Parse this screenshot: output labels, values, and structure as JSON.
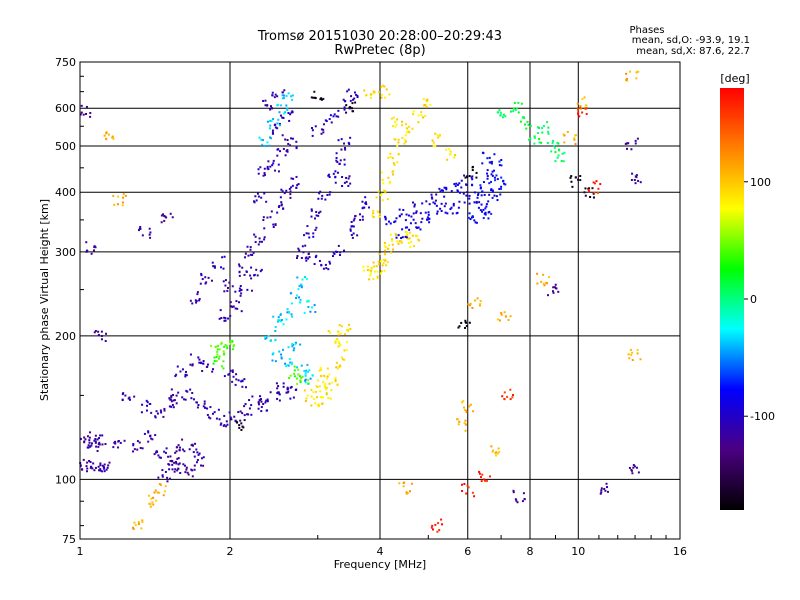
{
  "chart_data": {
    "type": "scatter",
    "title": "Tromsø 20151030 20:28:00–20:29:43",
    "subtitle": "RwPretec (8p)",
    "xlabel": "Frequency [MHz]",
    "ylabel": "Stationary phase Virtual Height [km]",
    "x_scale": "log",
    "y_scale": "log",
    "xlim": [
      1,
      16
    ],
    "ylim": [
      75,
      750
    ],
    "x_ticks": [
      "1",
      "2",
      "4",
      "6",
      "8",
      "10",
      "16"
    ],
    "y_ticks": [
      "75",
      "100",
      "200",
      "300",
      "400",
      "500",
      "600",
      "750"
    ],
    "grid": true,
    "stats": {
      "heading": "Phases",
      "line_o": "mean, sd,O: -93.9, 19.1",
      "line_x": "mean, sd,X:  87.6, 22.7"
    },
    "colorbar": {
      "label": "[deg]",
      "ticks": [
        "100",
        "0",
        "-100"
      ],
      "tick_values": [
        100,
        0,
        -100
      ],
      "range": [
        -180,
        180
      ],
      "colors": [
        "#000000",
        "#4b0082",
        "#0000ff",
        "#00ffff",
        "#00ff00",
        "#ffff00",
        "#ff8000",
        "#ff0000"
      ]
    },
    "clusters": [
      {
        "phase": -115,
        "points": [
          [
            1.02,
            122
          ],
          [
            1.05,
            119
          ],
          [
            1.08,
            121
          ],
          [
            1.1,
            118
          ],
          [
            1.03,
            108
          ],
          [
            1.06,
            106
          ],
          [
            1.09,
            105
          ],
          [
            1.12,
            107
          ],
          [
            1.2,
            120
          ],
          [
            1.3,
            117
          ],
          [
            1.38,
            123
          ],
          [
            1.45,
            114
          ],
          [
            1.52,
            112
          ],
          [
            1.6,
            118
          ],
          [
            1.7,
            116
          ],
          [
            1.55,
            108
          ],
          [
            1.65,
            104
          ],
          [
            1.75,
            110
          ],
          [
            1.48,
            102
          ],
          [
            1.58,
            106
          ]
        ]
      },
      {
        "phase": -110,
        "points": [
          [
            1.25,
            150
          ],
          [
            1.35,
            142
          ],
          [
            1.45,
            138
          ],
          [
            1.55,
            145
          ],
          [
            1.65,
            150
          ],
          [
            1.75,
            142
          ],
          [
            1.85,
            138
          ],
          [
            1.95,
            132
          ],
          [
            2.05,
            135
          ],
          [
            2.15,
            140
          ],
          [
            2.25,
            146
          ],
          [
            2.35,
            142
          ],
          [
            2.45,
            150
          ],
          [
            2.55,
            156
          ],
          [
            2.65,
            152
          ],
          [
            1.6,
            168
          ],
          [
            1.7,
            178
          ],
          [
            1.8,
            172
          ],
          [
            2.0,
            165
          ],
          [
            2.1,
            160
          ]
        ]
      },
      {
        "phase": -110,
        "points": [
          [
            1.7,
            240
          ],
          [
            1.8,
            262
          ],
          [
            1.9,
            285
          ],
          [
            2.0,
            255
          ],
          [
            2.1,
            275
          ],
          [
            2.2,
            300
          ],
          [
            2.25,
            270
          ],
          [
            1.95,
            220
          ],
          [
            2.05,
            230
          ],
          [
            2.15,
            248
          ],
          [
            2.3,
            320
          ],
          [
            2.4,
            345
          ],
          [
            2.5,
            372
          ],
          [
            2.6,
            395
          ],
          [
            2.7,
            420
          ],
          [
            2.45,
            455
          ],
          [
            2.55,
            480
          ],
          [
            2.65,
            510
          ],
          [
            2.5,
            540
          ],
          [
            2.6,
            575
          ],
          [
            2.4,
            610
          ],
          [
            2.5,
            640
          ],
          [
            2.3,
            390
          ],
          [
            2.35,
            440
          ]
        ]
      },
      {
        "phase": -105,
        "points": [
          [
            2.8,
            300
          ],
          [
            2.9,
            330
          ],
          [
            3.0,
            360
          ],
          [
            3.1,
            395
          ],
          [
            3.2,
            430
          ],
          [
            3.3,
            470
          ],
          [
            3.4,
            505
          ],
          [
            3.0,
            540
          ],
          [
            3.2,
            575
          ],
          [
            3.4,
            610
          ],
          [
            3.5,
            640
          ],
          [
            2.9,
            290
          ],
          [
            3.1,
            280
          ],
          [
            3.3,
            300
          ],
          [
            3.5,
            330
          ],
          [
            3.6,
            355
          ],
          [
            3.7,
            380
          ],
          [
            3.4,
            420
          ]
        ]
      },
      {
        "phase": -35,
        "points": [
          [
            2.4,
            200
          ],
          [
            2.5,
            214
          ],
          [
            2.6,
            222
          ],
          [
            2.7,
            240
          ],
          [
            2.8,
            258
          ],
          [
            2.9,
            230
          ],
          [
            2.7,
            190
          ],
          [
            2.5,
            182
          ],
          [
            2.6,
            175
          ],
          [
            2.8,
            170
          ],
          [
            2.9,
            163
          ],
          [
            2.45,
            560
          ],
          [
            2.55,
            600
          ],
          [
            2.6,
            630
          ],
          [
            2.35,
            508
          ]
        ]
      },
      {
        "phase": 40,
        "points": [
          [
            1.85,
            185
          ],
          [
            1.9,
            176
          ],
          [
            2.0,
            192
          ],
          [
            1.95,
            188
          ],
          [
            2.7,
            168
          ],
          [
            2.8,
            162
          ]
        ]
      },
      {
        "phase": 90,
        "points": [
          [
            2.9,
            150
          ],
          [
            3.0,
            146
          ],
          [
            3.1,
            152
          ],
          [
            3.2,
            160
          ],
          [
            3.3,
            175
          ],
          [
            3.35,
            190
          ],
          [
            3.25,
            200
          ],
          [
            3.4,
            205
          ],
          [
            3.1,
            168
          ],
          [
            3.05,
            158
          ],
          [
            3.8,
            275
          ],
          [
            3.9,
            270
          ],
          [
            4.0,
            280
          ],
          [
            4.1,
            290
          ],
          [
            4.2,
            305
          ],
          [
            4.3,
            318
          ],
          [
            4.5,
            322
          ],
          [
            4.7,
            316
          ],
          [
            3.95,
            362
          ],
          [
            4.05,
            395
          ],
          [
            4.15,
            430
          ],
          [
            4.25,
            468
          ],
          [
            4.4,
            505
          ],
          [
            4.6,
            540
          ],
          [
            4.8,
            575
          ],
          [
            5.0,
            610
          ],
          [
            4.3,
            560
          ],
          [
            3.8,
            640
          ],
          [
            4.1,
            650
          ],
          [
            5.2,
            515
          ],
          [
            5.5,
            480
          ]
        ]
      },
      {
        "phase": -90,
        "points": [
          [
            4.2,
            350
          ],
          [
            4.5,
            360
          ],
          [
            4.8,
            372
          ],
          [
            5.1,
            385
          ],
          [
            5.4,
            398
          ],
          [
            5.7,
            410
          ],
          [
            6.0,
            425
          ],
          [
            5.9,
            390
          ],
          [
            5.6,
            370
          ],
          [
            4.4,
            330
          ],
          [
            4.7,
            342
          ],
          [
            5.0,
            355
          ],
          [
            5.3,
            368
          ]
        ]
      },
      {
        "phase": -80,
        "points": [
          [
            6.3,
            390
          ],
          [
            6.5,
            410
          ],
          [
            6.7,
            432
          ],
          [
            6.9,
            455
          ],
          [
            6.4,
            375
          ],
          [
            6.6,
            360
          ],
          [
            6.8,
            395
          ],
          [
            7.0,
            418
          ],
          [
            6.2,
            352
          ],
          [
            6.6,
            470
          ]
        ]
      },
      {
        "phase": 10,
        "points": [
          [
            7.0,
            590
          ],
          [
            7.8,
            560
          ],
          [
            8.5,
            545
          ],
          [
            8.9,
            500
          ],
          [
            9.2,
            475
          ],
          [
            8.2,
            520
          ],
          [
            7.5,
            600
          ]
        ]
      },
      {
        "phase": 110,
        "points": [
          [
            1.15,
            525
          ],
          [
            1.2,
            385
          ],
          [
            1.3,
            80
          ],
          [
            1.4,
            90
          ],
          [
            1.45,
            95
          ],
          [
            5.8,
            130
          ],
          [
            6.0,
            142
          ],
          [
            6.8,
            115
          ],
          [
            7.1,
            222
          ],
          [
            8.5,
            262
          ],
          [
            9.6,
            520
          ],
          [
            10.2,
            615
          ],
          [
            12.8,
            700
          ],
          [
            13.0,
            182
          ],
          [
            4.5,
            96
          ],
          [
            6.2,
            235
          ]
        ]
      },
      {
        "phase": -120,
        "points": [
          [
            1.02,
            590
          ],
          [
            1.05,
            305
          ],
          [
            1.1,
            200
          ],
          [
            1.35,
            330
          ],
          [
            1.5,
            350
          ],
          [
            1.55,
            150
          ],
          [
            7.6,
            92
          ],
          [
            11.2,
            96
          ],
          [
            12.8,
            505
          ],
          [
            12.9,
            105
          ],
          [
            13.0,
            430
          ],
          [
            8.9,
            250
          ]
        ]
      },
      {
        "phase": -170,
        "points": [
          [
            2.1,
            130
          ],
          [
            3.0,
            640
          ],
          [
            3.5,
            600
          ],
          [
            6.1,
            440
          ],
          [
            9.8,
            420
          ],
          [
            10.5,
            398
          ],
          [
            5.9,
            210
          ]
        ]
      },
      {
        "phase": 165,
        "points": [
          [
            5.2,
            80
          ],
          [
            6.0,
            95
          ],
          [
            6.5,
            102
          ],
          [
            7.2,
            150
          ],
          [
            10.8,
            410
          ],
          [
            10.2,
            590
          ]
        ]
      }
    ]
  }
}
